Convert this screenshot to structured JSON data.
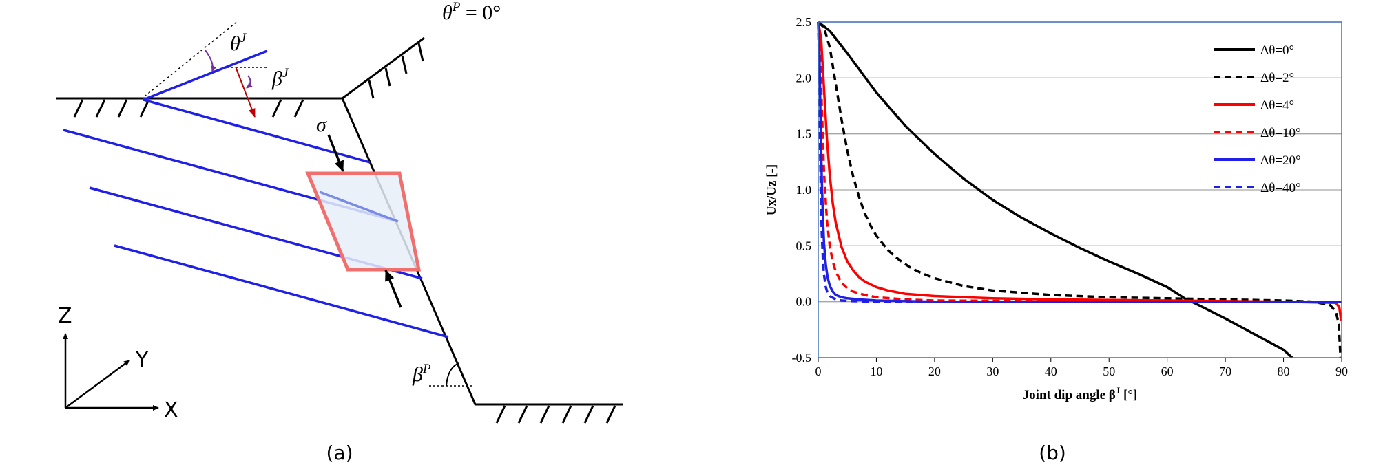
{
  "panel_a": {
    "caption": "(a)",
    "theta_p": "θ",
    "theta_p_sup": "P",
    "theta_p_value": " = 0°",
    "theta_j": "θ",
    "theta_j_sup": "J",
    "beta_j": "β",
    "beta_j_sup": "J",
    "beta_p": "β",
    "beta_p_sup": "P",
    "sigma": "σ",
    "axis_z": "Z",
    "axis_y": "Y",
    "axis_x": "X"
  },
  "panel_b": {
    "caption": "(b)"
  },
  "chart_data": {
    "type": "line",
    "xlabel": "Joint dip angle β",
    "xlabel_sup": "J",
    "xlabel_unit": " [°]",
    "ylabel": "Ux/Uz [-]",
    "xlim": [
      0,
      90
    ],
    "ylim": [
      -0.5,
      2.5
    ],
    "xticks": [
      "0",
      "10",
      "20",
      "30",
      "40",
      "50",
      "60",
      "70",
      "80",
      "90"
    ],
    "yticks": [
      "-0.5",
      "0.0",
      "0.5",
      "1.0",
      "1.5",
      "2.0",
      "2.5"
    ],
    "grid": "horizontal",
    "legend_position": "top-right",
    "colors": {
      "black": "#000000",
      "red": "#ff0000",
      "blue": "#1f1fe6",
      "frame": "#4472c4",
      "grid": "#a6a6a6"
    },
    "series": [
      {
        "name": "Δθ=0°",
        "color": "#000000",
        "dash": "solid",
        "x": [
          0,
          2,
          5,
          10,
          15,
          20,
          25,
          30,
          35,
          40,
          45,
          50,
          55,
          60,
          63,
          65,
          70,
          75,
          80,
          81.5
        ],
        "y": [
          2.5,
          2.42,
          2.22,
          1.87,
          1.57,
          1.32,
          1.1,
          0.91,
          0.75,
          0.61,
          0.48,
          0.36,
          0.25,
          0.13,
          0.03,
          -0.02,
          -0.15,
          -0.29,
          -0.43,
          -0.5
        ]
      },
      {
        "name": "Δθ=2°",
        "color": "#000000",
        "dash": "dashed",
        "x": [
          0,
          1,
          2,
          3,
          4,
          5,
          6,
          7,
          8,
          9,
          10,
          12,
          14,
          16,
          18,
          20,
          25,
          30,
          40,
          50,
          60,
          70,
          80,
          85,
          88,
          89,
          89.5,
          89.8
        ],
        "y": [
          2.5,
          2.45,
          2.27,
          1.95,
          1.63,
          1.35,
          1.12,
          0.94,
          0.79,
          0.68,
          0.59,
          0.46,
          0.37,
          0.3,
          0.25,
          0.21,
          0.14,
          0.1,
          0.06,
          0.04,
          0.03,
          0.02,
          0.01,
          0.0,
          -0.03,
          -0.09,
          -0.2,
          -0.5
        ]
      },
      {
        "name": "Δθ=4°",
        "color": "#ff0000",
        "dash": "solid",
        "x": [
          0,
          0.5,
          1,
          1.5,
          2,
          2.5,
          3,
          4,
          5,
          6,
          7,
          8,
          10,
          12,
          15,
          20,
          30,
          40,
          60,
          80,
          89,
          89.6,
          89.9
        ],
        "y": [
          2.5,
          2.35,
          1.9,
          1.45,
          1.12,
          0.88,
          0.71,
          0.49,
          0.36,
          0.28,
          0.22,
          0.18,
          0.13,
          0.1,
          0.07,
          0.05,
          0.03,
          0.02,
          0.01,
          0.0,
          -0.01,
          -0.05,
          -0.17
        ]
      },
      {
        "name": "Δθ=10°",
        "color": "#ff0000",
        "dash": "dashed",
        "x": [
          0,
          0.3,
          0.6,
          1,
          1.5,
          2,
          2.5,
          3,
          4,
          5,
          6,
          8,
          10,
          15,
          20,
          40,
          60,
          80,
          90
        ],
        "y": [
          2.5,
          2.3,
          1.75,
          1.15,
          0.72,
          0.49,
          0.36,
          0.27,
          0.17,
          0.12,
          0.09,
          0.06,
          0.04,
          0.02,
          0.01,
          0.005,
          0.0,
          0.0,
          0.0
        ]
      },
      {
        "name": "Δθ=20°",
        "color": "#1f1fe6",
        "dash": "solid",
        "x": [
          0,
          0.2,
          0.4,
          0.6,
          0.8,
          1,
          1.3,
          1.6,
          2,
          2.5,
          3,
          4,
          5,
          7,
          10,
          20,
          40,
          60,
          80,
          90
        ],
        "y": [
          2.5,
          2.2,
          1.6,
          1.1,
          0.75,
          0.52,
          0.33,
          0.22,
          0.14,
          0.09,
          0.06,
          0.04,
          0.03,
          0.02,
          0.01,
          0.0,
          0.0,
          0.0,
          0.0,
          0.0
        ]
      },
      {
        "name": "Δθ=40°",
        "color": "#1f1fe6",
        "dash": "dashed",
        "x": [
          0,
          0.15,
          0.3,
          0.45,
          0.6,
          0.8,
          1,
          1.3,
          1.6,
          2,
          3,
          4,
          6,
          10,
          20,
          40,
          60,
          80,
          90
        ],
        "y": [
          2.5,
          2.1,
          1.45,
          0.95,
          0.62,
          0.38,
          0.24,
          0.13,
          0.08,
          0.05,
          0.02,
          0.01,
          0.005,
          0.0,
          0.0,
          0.0,
          0.0,
          0.0,
          0.0
        ]
      }
    ]
  }
}
